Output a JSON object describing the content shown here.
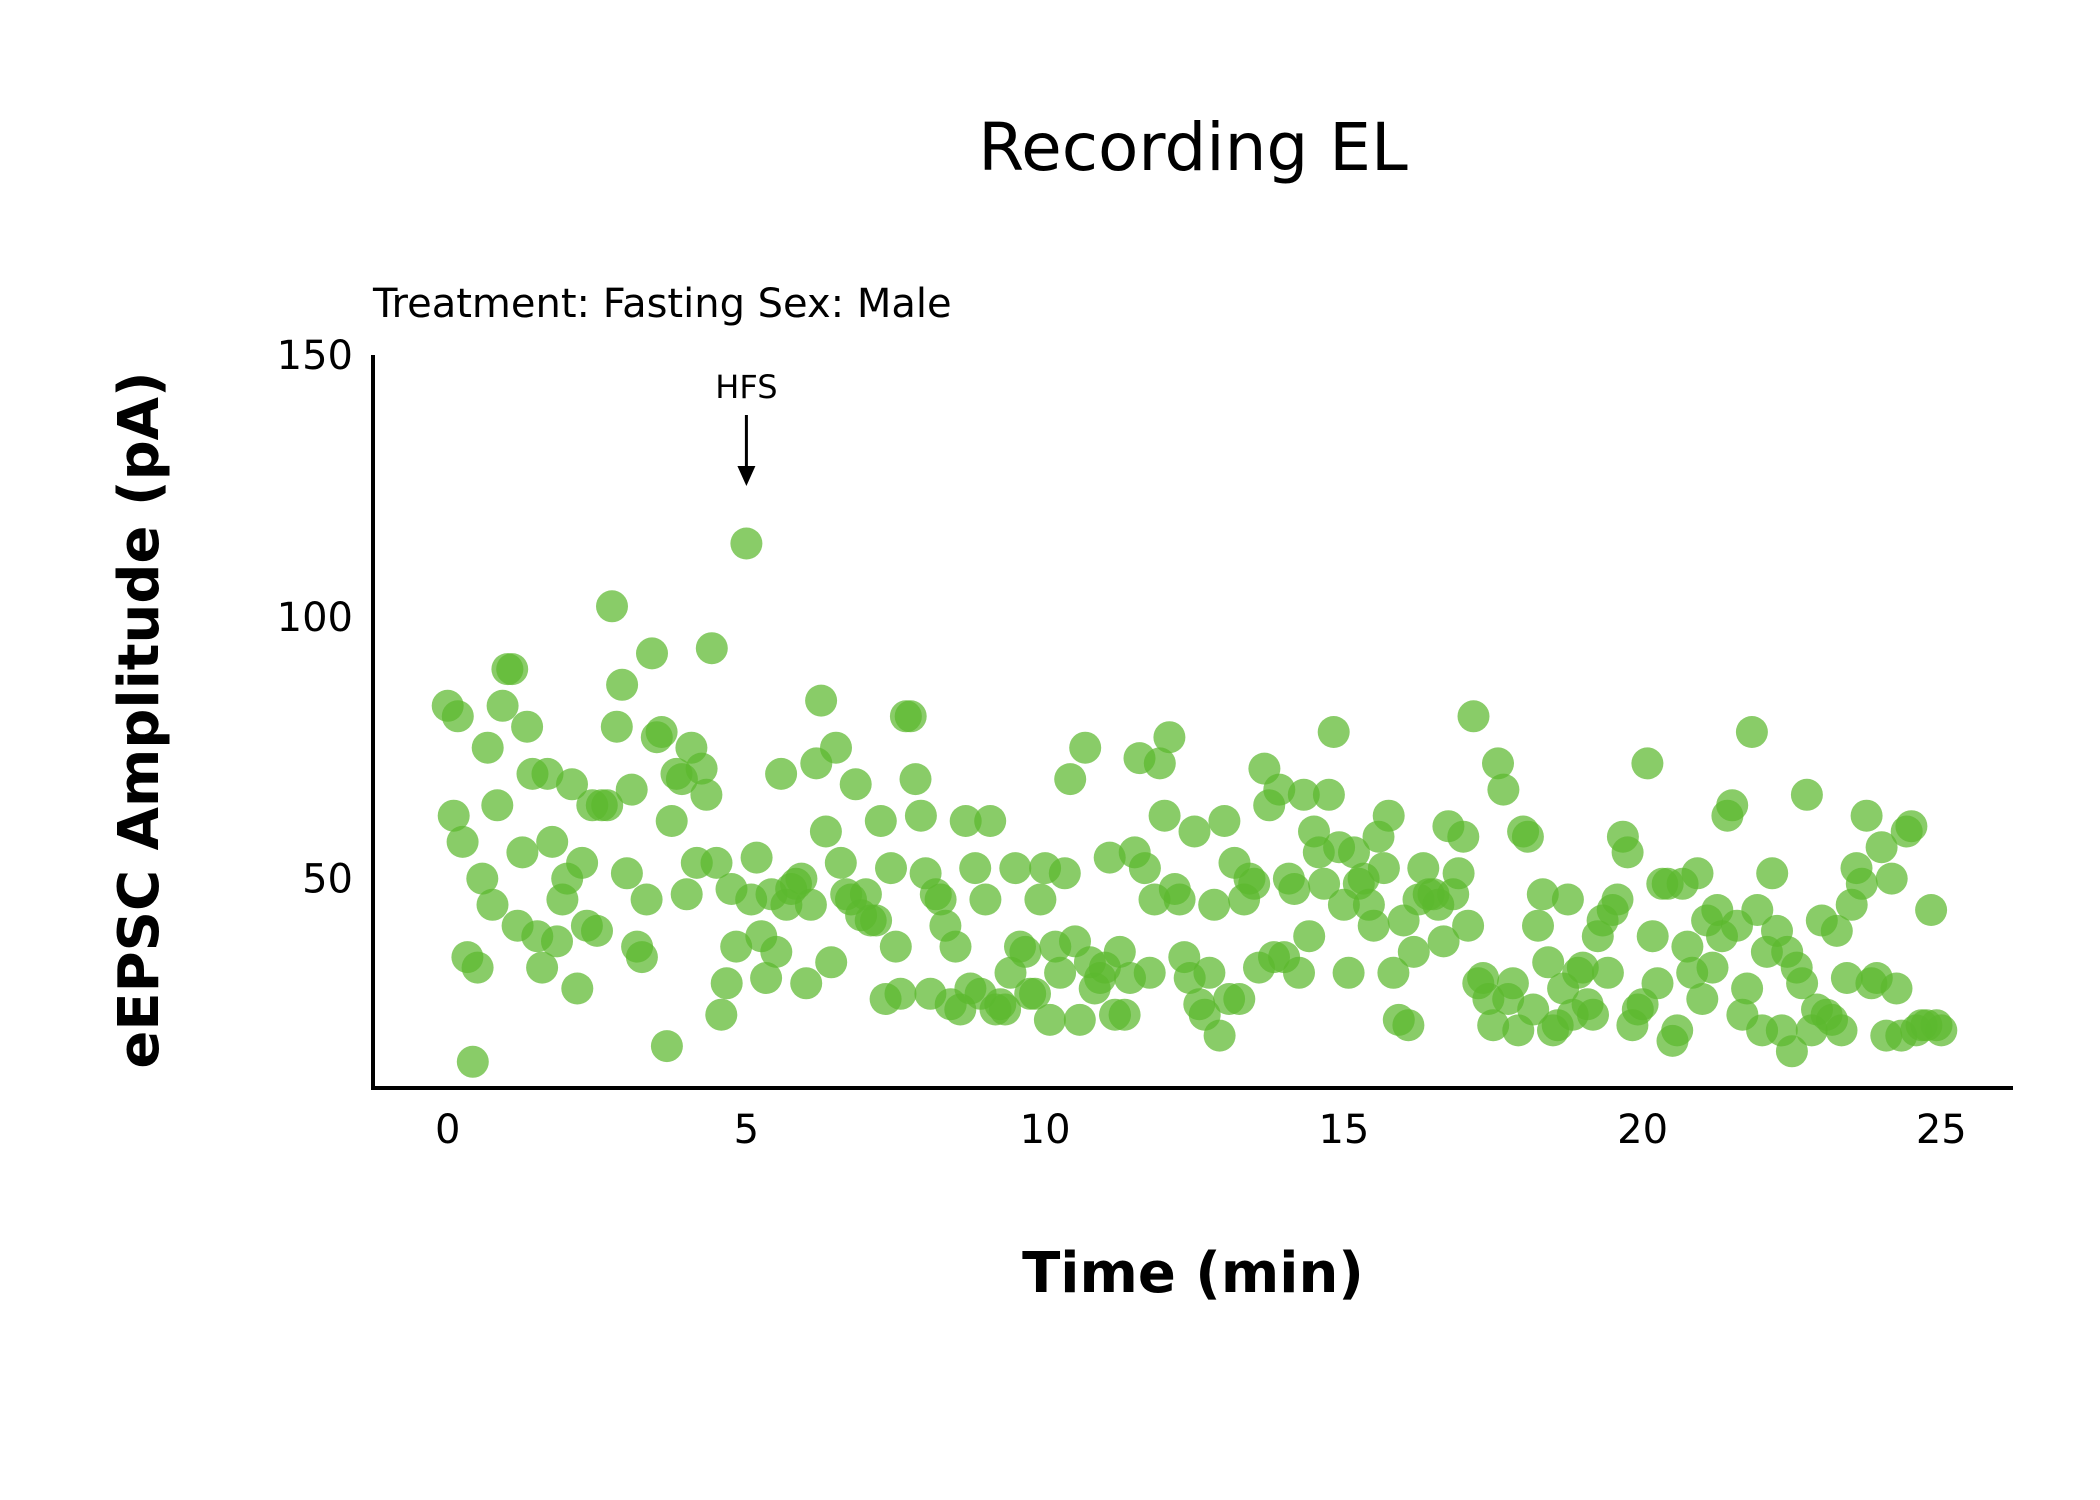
{
  "chart_data": {
    "type": "scatter",
    "title": "Recording EL",
    "subtitle": "Treatment: Fasting  Sex: Male",
    "xlabel": "Time (min)",
    "ylabel": "eEPSC Amplitude (pA)",
    "xlim": [
      -1.25,
      26.2
    ],
    "ylim": [
      10,
      150
    ],
    "xticks": [
      0,
      5,
      10,
      15,
      20,
      25
    ],
    "yticks": [
      50,
      100,
      150
    ],
    "grid": false,
    "legend": "none",
    "colors": {
      "points": "#5cb82e"
    },
    "annotations": [
      {
        "label": "HFS",
        "x": 5
      }
    ],
    "series": [
      {
        "points": [
          [
            0.0,
            83
          ],
          [
            0.17,
            81
          ],
          [
            0.1,
            62
          ],
          [
            0.25,
            57
          ],
          [
            0.33,
            35
          ],
          [
            0.42,
            15
          ],
          [
            0.5,
            33
          ],
          [
            0.58,
            50
          ],
          [
            0.67,
            75
          ],
          [
            0.75,
            45
          ],
          [
            0.83,
            64
          ],
          [
            0.92,
            83
          ],
          [
            1.0,
            90
          ],
          [
            1.08,
            90
          ],
          [
            1.17,
            41
          ],
          [
            1.25,
            55
          ],
          [
            1.33,
            79
          ],
          [
            1.42,
            70
          ],
          [
            1.5,
            39
          ],
          [
            1.58,
            33
          ],
          [
            1.67,
            70
          ],
          [
            1.75,
            57
          ],
          [
            1.83,
            38
          ],
          [
            1.92,
            46
          ],
          [
            2.0,
            50
          ],
          [
            2.08,
            68
          ],
          [
            2.17,
            29
          ],
          [
            2.25,
            53
          ],
          [
            2.33,
            41
          ],
          [
            2.42,
            64
          ],
          [
            2.5,
            40
          ],
          [
            2.58,
            64
          ],
          [
            2.67,
            64
          ],
          [
            2.75,
            102
          ],
          [
            2.83,
            79
          ],
          [
            2.92,
            87
          ],
          [
            3.0,
            51
          ],
          [
            3.08,
            67
          ],
          [
            3.17,
            37
          ],
          [
            3.25,
            35
          ],
          [
            3.33,
            46
          ],
          [
            3.42,
            93
          ],
          [
            3.5,
            77
          ],
          [
            3.58,
            78
          ],
          [
            3.67,
            18
          ],
          [
            3.75,
            61
          ],
          [
            3.83,
            70
          ],
          [
            3.92,
            69
          ],
          [
            4.0,
            47
          ],
          [
            4.08,
            75
          ],
          [
            4.17,
            53
          ],
          [
            4.25,
            71
          ],
          [
            4.33,
            66
          ],
          [
            4.42,
            94
          ],
          [
            4.5,
            53
          ],
          [
            4.58,
            24
          ],
          [
            4.67,
            30
          ],
          [
            4.75,
            48
          ],
          [
            4.83,
            37
          ],
          [
            5.0,
            114
          ],
          [
            5.08,
            46
          ],
          [
            5.17,
            54
          ],
          [
            5.25,
            39
          ],
          [
            5.33,
            31
          ],
          [
            5.42,
            47
          ],
          [
            5.5,
            36
          ],
          [
            5.58,
            70
          ],
          [
            5.67,
            45
          ],
          [
            5.75,
            48
          ],
          [
            5.83,
            49
          ],
          [
            5.92,
            50
          ],
          [
            6.0,
            30
          ],
          [
            6.08,
            45
          ],
          [
            6.17,
            72
          ],
          [
            6.25,
            84
          ],
          [
            6.33,
            59
          ],
          [
            6.42,
            34
          ],
          [
            6.5,
            75
          ],
          [
            6.58,
            53
          ],
          [
            6.67,
            47
          ],
          [
            6.75,
            46
          ],
          [
            6.83,
            68
          ],
          [
            6.92,
            43
          ],
          [
            7.0,
            47
          ],
          [
            7.08,
            42
          ],
          [
            7.17,
            42
          ],
          [
            7.25,
            61
          ],
          [
            7.33,
            27
          ],
          [
            7.42,
            52
          ],
          [
            7.5,
            37
          ],
          [
            7.58,
            28
          ],
          [
            7.67,
            81
          ],
          [
            7.75,
            81
          ],
          [
            7.83,
            69
          ],
          [
            7.92,
            62
          ],
          [
            8.0,
            51
          ],
          [
            8.08,
            28
          ],
          [
            8.17,
            47
          ],
          [
            8.25,
            46
          ],
          [
            8.33,
            41
          ],
          [
            8.42,
            26
          ],
          [
            8.5,
            37
          ],
          [
            8.58,
            25
          ],
          [
            8.67,
            61
          ],
          [
            8.75,
            29
          ],
          [
            8.83,
            52
          ],
          [
            8.92,
            28
          ],
          [
            9.0,
            46
          ],
          [
            9.08,
            61
          ],
          [
            9.17,
            25
          ],
          [
            9.25,
            26
          ],
          [
            9.33,
            25
          ],
          [
            9.42,
            32
          ],
          [
            9.5,
            52
          ],
          [
            9.58,
            37
          ],
          [
            9.67,
            36
          ],
          [
            9.75,
            28
          ],
          [
            9.83,
            28
          ],
          [
            9.92,
            46
          ],
          [
            10.0,
            52
          ],
          [
            10.08,
            23
          ],
          [
            10.17,
            37
          ],
          [
            10.25,
            32
          ],
          [
            10.33,
            51
          ],
          [
            10.42,
            69
          ],
          [
            10.5,
            38
          ],
          [
            10.58,
            23
          ],
          [
            10.67,
            75
          ],
          [
            10.75,
            34
          ],
          [
            10.83,
            29
          ],
          [
            10.92,
            31
          ],
          [
            11.0,
            33
          ],
          [
            11.08,
            54
          ],
          [
            11.17,
            24
          ],
          [
            11.25,
            36
          ],
          [
            11.33,
            24
          ],
          [
            11.42,
            31
          ],
          [
            11.5,
            55
          ],
          [
            11.58,
            73
          ],
          [
            11.67,
            52
          ],
          [
            11.75,
            32
          ],
          [
            11.83,
            46
          ],
          [
            11.92,
            72
          ],
          [
            12.0,
            62
          ],
          [
            12.08,
            77
          ],
          [
            12.17,
            48
          ],
          [
            12.25,
            46
          ],
          [
            12.33,
            35
          ],
          [
            12.42,
            31
          ],
          [
            12.5,
            59
          ],
          [
            12.58,
            26
          ],
          [
            12.67,
            24
          ],
          [
            12.75,
            32
          ],
          [
            12.83,
            45
          ],
          [
            12.92,
            20
          ],
          [
            13.0,
            61
          ],
          [
            13.08,
            27
          ],
          [
            13.17,
            53
          ],
          [
            13.25,
            27
          ],
          [
            13.33,
            46
          ],
          [
            13.42,
            50
          ],
          [
            13.5,
            49
          ],
          [
            13.58,
            33
          ],
          [
            13.67,
            71
          ],
          [
            13.75,
            64
          ],
          [
            13.83,
            35
          ],
          [
            13.92,
            67
          ],
          [
            14.0,
            35
          ],
          [
            14.08,
            50
          ],
          [
            14.17,
            48
          ],
          [
            14.25,
            32
          ],
          [
            14.33,
            66
          ],
          [
            14.42,
            39
          ],
          [
            14.5,
            59
          ],
          [
            14.58,
            55
          ],
          [
            14.67,
            49
          ],
          [
            14.75,
            66
          ],
          [
            14.83,
            78
          ],
          [
            14.92,
            56
          ],
          [
            15.0,
            45
          ],
          [
            15.08,
            32
          ],
          [
            15.17,
            55
          ],
          [
            15.25,
            49
          ],
          [
            15.33,
            50
          ],
          [
            15.42,
            45
          ],
          [
            15.5,
            41
          ],
          [
            15.58,
            58
          ],
          [
            15.67,
            52
          ],
          [
            15.75,
            62
          ],
          [
            15.83,
            32
          ],
          [
            15.92,
            23
          ],
          [
            16.0,
            42
          ],
          [
            16.08,
            22
          ],
          [
            16.17,
            36
          ],
          [
            16.25,
            46
          ],
          [
            16.33,
            52
          ],
          [
            16.42,
            47
          ],
          [
            16.5,
            47
          ],
          [
            16.58,
            45
          ],
          [
            16.67,
            38
          ],
          [
            16.75,
            60
          ],
          [
            16.83,
            47
          ],
          [
            16.92,
            51
          ],
          [
            17.0,
            58
          ],
          [
            17.08,
            41
          ],
          [
            17.17,
            81
          ],
          [
            17.25,
            30
          ],
          [
            17.33,
            31
          ],
          [
            17.42,
            27
          ],
          [
            17.5,
            22
          ],
          [
            17.58,
            72
          ],
          [
            17.67,
            67
          ],
          [
            17.75,
            27
          ],
          [
            17.83,
            30
          ],
          [
            17.92,
            21
          ],
          [
            18.0,
            59
          ],
          [
            18.08,
            58
          ],
          [
            18.17,
            25
          ],
          [
            18.25,
            41
          ],
          [
            18.33,
            47
          ],
          [
            18.42,
            34
          ],
          [
            18.5,
            21
          ],
          [
            18.58,
            22
          ],
          [
            18.67,
            29
          ],
          [
            18.75,
            46
          ],
          [
            18.83,
            24
          ],
          [
            18.92,
            32
          ],
          [
            19.0,
            33
          ],
          [
            19.08,
            26
          ],
          [
            19.17,
            24
          ],
          [
            19.25,
            39
          ],
          [
            19.33,
            42
          ],
          [
            19.42,
            32
          ],
          [
            19.5,
            44
          ],
          [
            19.58,
            46
          ],
          [
            19.67,
            58
          ],
          [
            19.75,
            55
          ],
          [
            19.83,
            22
          ],
          [
            19.92,
            25
          ],
          [
            20.0,
            26
          ],
          [
            20.08,
            72
          ],
          [
            20.17,
            39
          ],
          [
            20.25,
            30
          ],
          [
            20.33,
            49
          ],
          [
            20.42,
            49
          ],
          [
            20.5,
            19
          ],
          [
            20.58,
            21
          ],
          [
            20.67,
            49
          ],
          [
            20.75,
            37
          ],
          [
            20.83,
            32
          ],
          [
            20.92,
            51
          ],
          [
            21.0,
            27
          ],
          [
            21.08,
            42
          ],
          [
            21.17,
            33
          ],
          [
            21.25,
            44
          ],
          [
            21.33,
            39
          ],
          [
            21.42,
            62
          ],
          [
            21.5,
            64
          ],
          [
            21.58,
            41
          ],
          [
            21.67,
            24
          ],
          [
            21.75,
            29
          ],
          [
            21.83,
            78
          ],
          [
            21.92,
            44
          ],
          [
            22.0,
            21
          ],
          [
            22.08,
            36
          ],
          [
            22.17,
            51
          ],
          [
            22.25,
            40
          ],
          [
            22.33,
            21
          ],
          [
            22.42,
            36
          ],
          [
            22.5,
            17
          ],
          [
            22.58,
            33
          ],
          [
            22.67,
            30
          ],
          [
            22.75,
            66
          ],
          [
            22.83,
            21
          ],
          [
            22.92,
            25
          ],
          [
            23.0,
            42
          ],
          [
            23.08,
            24
          ],
          [
            23.17,
            23
          ],
          [
            23.25,
            40
          ],
          [
            23.33,
            21
          ],
          [
            23.42,
            31
          ],
          [
            23.5,
            45
          ],
          [
            23.58,
            52
          ],
          [
            23.67,
            49
          ],
          [
            23.75,
            62
          ],
          [
            23.83,
            30
          ],
          [
            23.92,
            31
          ],
          [
            24.0,
            56
          ],
          [
            24.08,
            20
          ],
          [
            24.17,
            50
          ],
          [
            24.25,
            29
          ],
          [
            24.33,
            20
          ],
          [
            24.42,
            59
          ],
          [
            24.5,
            60
          ],
          [
            24.58,
            21
          ],
          [
            24.67,
            22
          ],
          [
            24.75,
            22
          ],
          [
            24.83,
            44
          ],
          [
            24.92,
            22
          ],
          [
            25.0,
            21
          ]
        ]
      }
    ]
  }
}
